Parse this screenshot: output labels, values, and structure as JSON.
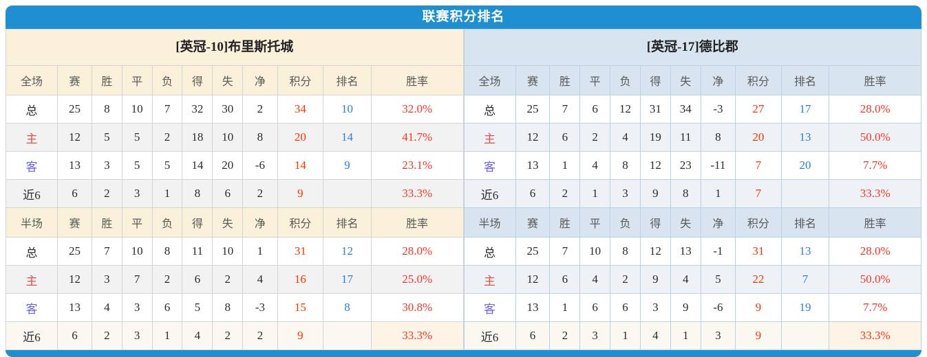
{
  "title": "联赛积分排名",
  "section_labels": {
    "full": "全场",
    "half": "半场"
  },
  "column_headers": [
    "赛",
    "胜",
    "平",
    "负",
    "得",
    "失",
    "净",
    "积分",
    "排名",
    "胜率"
  ],
  "colors": {
    "bar_blue": "#1e8fd1",
    "left_header_bg": "#fbf0d9",
    "right_header_bg": "#d8e4ef",
    "points_red": "#ff3300",
    "rate_red": "#ff3322",
    "rank_blue": "#2a7fd4",
    "home_label_red": "#e14f4f",
    "away_label_blue": "#6b62ee"
  },
  "teams": [
    {
      "name": "[英冠-10]布里斯托城",
      "full": [
        {
          "label": "总",
          "stats": [
            "25",
            "8",
            "10",
            "7",
            "32",
            "30",
            "2"
          ],
          "points": "34",
          "rank": "10",
          "rate": "32.0%"
        },
        {
          "label": "主",
          "stats": [
            "12",
            "5",
            "5",
            "2",
            "18",
            "10",
            "8"
          ],
          "points": "20",
          "rank": "14",
          "rate": "41.7%"
        },
        {
          "label": "客",
          "stats": [
            "13",
            "3",
            "5",
            "5",
            "14",
            "20",
            "-6"
          ],
          "points": "14",
          "rank": "9",
          "rate": "23.1%"
        },
        {
          "label": "近6",
          "stats": [
            "6",
            "2",
            "3",
            "1",
            "8",
            "6",
            "2"
          ],
          "points": "9",
          "rank": "",
          "rate": "33.3%"
        }
      ],
      "half": [
        {
          "label": "总",
          "stats": [
            "25",
            "7",
            "10",
            "8",
            "11",
            "10",
            "1"
          ],
          "points": "31",
          "rank": "12",
          "rate": "28.0%"
        },
        {
          "label": "主",
          "stats": [
            "12",
            "3",
            "7",
            "2",
            "6",
            "2",
            "4"
          ],
          "points": "16",
          "rank": "17",
          "rate": "25.0%"
        },
        {
          "label": "客",
          "stats": [
            "13",
            "4",
            "3",
            "6",
            "5",
            "8",
            "-3"
          ],
          "points": "15",
          "rank": "8",
          "rate": "30.8%"
        },
        {
          "label": "近6",
          "stats": [
            "6",
            "2",
            "3",
            "1",
            "4",
            "2",
            "2"
          ],
          "points": "9",
          "rank": "",
          "rate": "33.3%"
        }
      ]
    },
    {
      "name": "[英冠-17]德比郡",
      "full": [
        {
          "label": "总",
          "stats": [
            "25",
            "7",
            "6",
            "12",
            "31",
            "34",
            "-3"
          ],
          "points": "27",
          "rank": "17",
          "rate": "28.0%"
        },
        {
          "label": "主",
          "stats": [
            "12",
            "6",
            "2",
            "4",
            "19",
            "11",
            "8"
          ],
          "points": "20",
          "rank": "13",
          "rate": "50.0%"
        },
        {
          "label": "客",
          "stats": [
            "13",
            "1",
            "4",
            "8",
            "12",
            "23",
            "-11"
          ],
          "points": "7",
          "rank": "20",
          "rate": "7.7%"
        },
        {
          "label": "近6",
          "stats": [
            "6",
            "2",
            "1",
            "3",
            "9",
            "8",
            "1"
          ],
          "points": "7",
          "rank": "",
          "rate": "33.3%"
        }
      ],
      "half": [
        {
          "label": "总",
          "stats": [
            "25",
            "7",
            "10",
            "8",
            "12",
            "13",
            "-1"
          ],
          "points": "31",
          "rank": "13",
          "rate": "28.0%"
        },
        {
          "label": "主",
          "stats": [
            "12",
            "6",
            "4",
            "2",
            "9",
            "4",
            "5"
          ],
          "points": "22",
          "rank": "7",
          "rate": "50.0%"
        },
        {
          "label": "客",
          "stats": [
            "13",
            "1",
            "6",
            "6",
            "3",
            "9",
            "-6"
          ],
          "points": "9",
          "rank": "19",
          "rate": "7.7%"
        },
        {
          "label": "近6",
          "stats": [
            "6",
            "2",
            "3",
            "1",
            "4",
            "1",
            "3"
          ],
          "points": "9",
          "rank": "",
          "rate": "33.3%"
        }
      ]
    }
  ]
}
